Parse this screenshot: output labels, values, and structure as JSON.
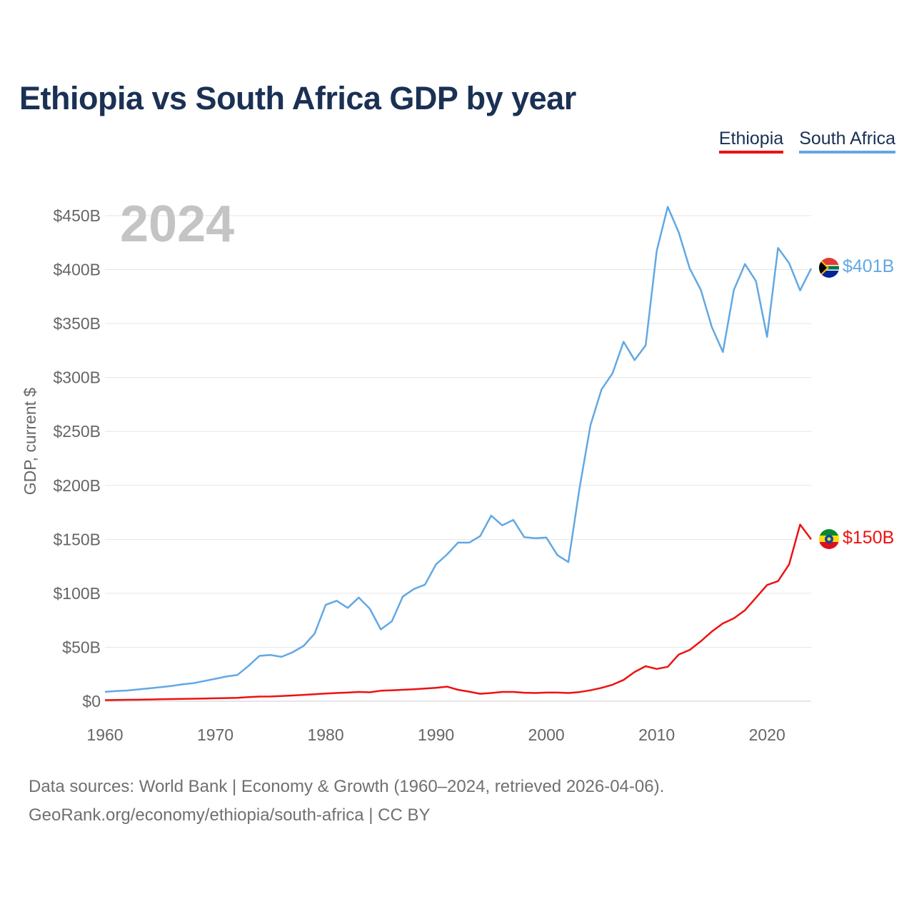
{
  "title": "Ethiopia vs South Africa GDP by year",
  "legend": {
    "ethiopia": "Ethiopia",
    "south_africa": "South Africa"
  },
  "colors": {
    "ethiopia": "#ee1111",
    "south_africa": "#62a8e4",
    "title": "#1a3154",
    "year_watermark": "#c4c4c4",
    "grid": "#e6e6e6",
    "axis_text": "#666666"
  },
  "chart_data": {
    "type": "line",
    "title": "Ethiopia vs South Africa GDP by year",
    "current_year_label": "2024",
    "xlabel": "",
    "ylabel": "GDP, current $",
    "xlim": [
      1960,
      2024
    ],
    "ylim": [
      0,
      450
    ],
    "value_units": "billions of current US$",
    "x_ticks": [
      1960,
      1970,
      1980,
      1990,
      2000,
      2010,
      2020
    ],
    "x_tick_labels": [
      "1960",
      "1970",
      "1980",
      "1990",
      "2000",
      "2010",
      "2020"
    ],
    "y_ticks": [
      0,
      50,
      100,
      150,
      200,
      250,
      300,
      350,
      400,
      450
    ],
    "y_tick_labels": [
      "$0",
      "$50B",
      "$100B",
      "$150B",
      "$200B",
      "$250B",
      "$300B",
      "$350B",
      "$400B",
      "$450B"
    ],
    "grid": true,
    "legend_position": "top-right",
    "x": [
      1960,
      1961,
      1962,
      1963,
      1964,
      1965,
      1966,
      1967,
      1968,
      1969,
      1970,
      1971,
      1972,
      1973,
      1974,
      1975,
      1976,
      1977,
      1978,
      1979,
      1980,
      1981,
      1982,
      1983,
      1984,
      1985,
      1986,
      1987,
      1988,
      1989,
      1990,
      1991,
      1992,
      1993,
      1994,
      1995,
      1996,
      1997,
      1998,
      1999,
      2000,
      2001,
      2002,
      2003,
      2004,
      2005,
      2006,
      2007,
      2008,
      2009,
      2010,
      2011,
      2012,
      2013,
      2014,
      2015,
      2016,
      2017,
      2018,
      2019,
      2020,
      2021,
      2022,
      2023,
      2024
    ],
    "series": [
      {
        "name": "Ethiopia",
        "color": "#ee1111",
        "end_label": "$150B",
        "flag": "ethiopia-flag",
        "values": [
          1.0,
          1.2,
          1.3,
          1.4,
          1.6,
          1.8,
          2.0,
          2.1,
          2.3,
          2.5,
          2.7,
          2.9,
          3.2,
          3.8,
          4.3,
          4.4,
          4.8,
          5.3,
          5.9,
          6.5,
          7.1,
          7.6,
          8.0,
          8.6,
          8.3,
          9.7,
          10.1,
          10.6,
          11.1,
          11.7,
          12.4,
          13.5,
          10.6,
          8.9,
          6.9,
          7.6,
          8.6,
          8.6,
          7.9,
          7.6,
          8.0,
          8.0,
          7.6,
          8.5,
          10.1,
          12.4,
          15.3,
          19.7,
          27.1,
          32.4,
          29.9,
          31.9,
          43.3,
          47.6,
          55.6,
          64.6,
          72.1,
          76.8,
          84.3,
          95.9,
          107.7,
          111.3,
          126.8,
          163.7,
          150.0
        ]
      },
      {
        "name": "South Africa",
        "color": "#62a8e4",
        "end_label": "$401B",
        "flag": "south-africa-flag",
        "values": [
          8.7,
          9.4,
          9.9,
          10.9,
          11.9,
          13.0,
          14.1,
          15.6,
          16.7,
          18.7,
          20.8,
          22.9,
          24.3,
          32.6,
          42.0,
          42.8,
          41.1,
          45.3,
          51.3,
          62.7,
          89.3,
          93.1,
          86.5,
          96.1,
          85.7,
          66.5,
          74.1,
          97.1,
          104.0,
          108.0,
          126.8,
          136.0,
          147.0,
          147.0,
          153.0,
          172.0,
          163.0,
          168.0,
          152.0,
          151.0,
          151.7,
          135.4,
          128.9,
          197.0,
          255.8,
          288.9,
          303.9,
          333.1,
          316.1,
          329.8,
          417.4,
          458.2,
          434.4,
          400.9,
          381.2,
          346.7,
          323.6,
          381.4,
          405.1,
          389.3,
          337.6,
          420.1,
          406.0,
          380.7,
          401.0
        ]
      }
    ]
  },
  "footer": {
    "line1": "Data sources: World Bank | Economy & Growth (1960–2024, retrieved 2026-04-06).",
    "line2": "GeoRank.org/economy/ethiopia/south-africa | CC BY"
  }
}
